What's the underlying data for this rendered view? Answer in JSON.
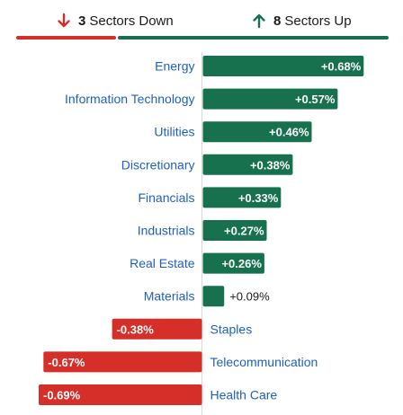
{
  "header": {
    "down_count": "3",
    "down_label": "Sectors Down",
    "up_count": "8",
    "up_label": "Sectors Up"
  },
  "colors": {
    "up": "#17714f",
    "down": "#d62f2a",
    "category_text": "#1f5fbf",
    "axis": "#d9d9d9"
  },
  "chart_data": {
    "type": "bar",
    "orientation": "horizontal",
    "categories": [
      "Energy",
      "Information Technology",
      "Utilities",
      "Discretionary",
      "Financials",
      "Industrials",
      "Real Estate",
      "Materials",
      "Staples",
      "Telecommunication",
      "Health Care"
    ],
    "values": [
      0.68,
      0.57,
      0.46,
      0.38,
      0.33,
      0.27,
      0.26,
      0.09,
      -0.38,
      -0.67,
      -0.69
    ],
    "data_labels": [
      "+0.68%",
      "+0.57%",
      "+0.46%",
      "+0.38%",
      "+0.33%",
      "+0.27%",
      "+0.26%",
      "+0.09%",
      "-0.38%",
      "-0.67%",
      "-0.69%"
    ],
    "unit": "%",
    "title": "",
    "xlabel": "",
    "ylabel": "",
    "grid": false,
    "legend": "none"
  }
}
